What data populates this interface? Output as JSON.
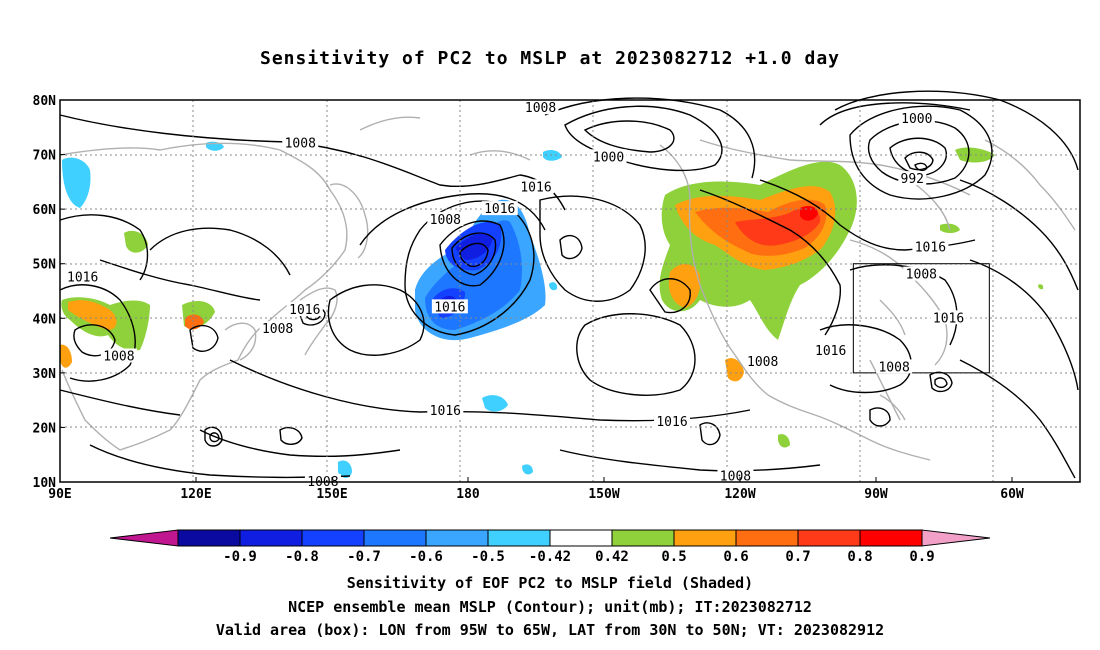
{
  "title": "Sensitivity of PC2 to MSLP at 2023082712 +1.0 day",
  "map": {
    "lat_labels": [
      "80N",
      "70N",
      "60N",
      "50N",
      "40N",
      "30N",
      "20N",
      "10N"
    ],
    "lon_labels": [
      "90E",
      "120E",
      "150E",
      "180",
      "150W",
      "120W",
      "90W",
      "60W"
    ],
    "contour_labels": [
      {
        "text": "1008",
        "lon": -164,
        "lat": 78.5
      },
      {
        "text": "1000",
        "lon": -149,
        "lat": 69.5
      },
      {
        "text": "1000",
        "lon": -81,
        "lat": 76.5
      },
      {
        "text": "992",
        "lon": -82,
        "lat": 65.5
      },
      {
        "text": "1016",
        "lon": -165,
        "lat": 64
      },
      {
        "text": "1016",
        "lon": -173,
        "lat": 60
      },
      {
        "text": "1008",
        "lon": -185,
        "lat": 58
      },
      {
        "text": "1008",
        "lon": -217,
        "lat": 72
      },
      {
        "text": "1016",
        "lon": -265,
        "lat": 47.5
      },
      {
        "text": "1016",
        "lon": -216,
        "lat": 41.5
      },
      {
        "text": "1008",
        "lon": -222,
        "lat": 38
      },
      {
        "text": "1008",
        "lon": -257,
        "lat": 33
      },
      {
        "text": "1016",
        "lon": -184,
        "lat": 42
      },
      {
        "text": "1008",
        "lon": -115,
        "lat": 32
      },
      {
        "text": "1016",
        "lon": -100,
        "lat": 34
      },
      {
        "text": "1016",
        "lon": -78,
        "lat": 53
      },
      {
        "text": "1008",
        "lon": -80,
        "lat": 48
      },
      {
        "text": "1016",
        "lon": -74,
        "lat": 40
      },
      {
        "text": "1008",
        "lon": -86,
        "lat": 31
      },
      {
        "text": "1016",
        "lon": -185,
        "lat": 23
      },
      {
        "text": "1016",
        "lon": -135,
        "lat": 21
      },
      {
        "text": "1008",
        "lon": -121,
        "lat": 11
      },
      {
        "text": "1008",
        "lon": -212,
        "lat": 10
      }
    ],
    "valid_box": {
      "lon_min": -95,
      "lon_max": -65,
      "lat_min": 30,
      "lat_max": 50
    }
  },
  "colorbar": {
    "labels": [
      "-0.9",
      "-0.8",
      "-0.7",
      "-0.6",
      "-0.5",
      "-0.42",
      "0.42",
      "0.5",
      "0.6",
      "0.7",
      "0.8",
      "0.9"
    ],
    "colors": {
      "low_extend": "#c0168f",
      "high_extend": "#f2a0c8",
      "bins": [
        "#0a0aa0",
        "#0f1ee0",
        "#1440ff",
        "#1e78ff",
        "#3aa6ff",
        "#40d0ff",
        "#ffffff",
        "#8ed13a",
        "#ffa010",
        "#ff6e10",
        "#ff3a18",
        "#ff0000"
      ]
    }
  },
  "captions": {
    "line1": "Sensitivity of EOF PC2 to MSLP field (Shaded)",
    "line2": "NCEP ensemble mean MSLP (Contour); unit(mb); IT:2023082712",
    "line3": "Valid area (box): LON from 95W to 65W, LAT from 30N to 50N; VT: 2023082912"
  }
}
